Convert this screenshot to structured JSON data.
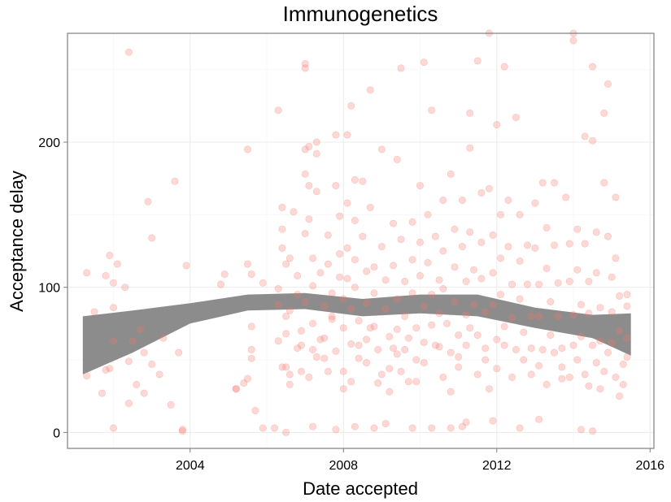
{
  "chart_data": {
    "type": "scatter",
    "title": "Immunogenetics",
    "xlabel": "Date accepted",
    "ylabel": "Acceptance delay",
    "xlim": [
      2000.8,
      2016.1
    ],
    "ylim": [
      -11,
      275
    ],
    "x_ticks": [
      2004,
      2008,
      2012,
      2016
    ],
    "y_ticks": [
      0,
      100,
      200
    ],
    "grid": true,
    "point_color": "#f8766d",
    "band_color": "#808080",
    "smooth_band": {
      "x": [
        2001.2,
        2002.5,
        2004.0,
        2005.5,
        2007.0,
        2008.5,
        2010.0,
        2011.5,
        2013.0,
        2014.5,
        2015.5
      ],
      "lower": [
        40,
        55,
        75,
        84,
        85,
        80,
        82,
        80,
        72,
        65,
        53
      ],
      "upper": [
        80,
        84,
        89,
        95,
        96,
        92,
        95,
        95,
        86,
        81,
        82
      ]
    },
    "points": [
      [
        2001.3,
        110
      ],
      [
        2001.3,
        39
      ],
      [
        2001.5,
        83
      ],
      [
        2001.7,
        27
      ],
      [
        2001.8,
        108
      ],
      [
        2001.8,
        43
      ],
      [
        2001.9,
        44
      ],
      [
        2001.9,
        122
      ],
      [
        2002.0,
        103
      ],
      [
        2002.0,
        86
      ],
      [
        2002.0,
        63
      ],
      [
        2002.0,
        3
      ],
      [
        2002.1,
        116
      ],
      [
        2002.3,
        100
      ],
      [
        2002.4,
        49
      ],
      [
        2002.4,
        20
      ],
      [
        2002.4,
        262
      ],
      [
        2002.5,
        63
      ],
      [
        2002.6,
        33
      ],
      [
        2002.7,
        71
      ],
      [
        2002.8,
        55
      ],
      [
        2002.8,
        27
      ],
      [
        2002.9,
        159
      ],
      [
        2003.0,
        47
      ],
      [
        2003.0,
        134
      ],
      [
        2003.2,
        40
      ],
      [
        2003.3,
        65
      ],
      [
        2003.5,
        19
      ],
      [
        2003.6,
        173
      ],
      [
        2003.7,
        55
      ],
      [
        2003.8,
        1
      ],
      [
        2003.8,
        2
      ],
      [
        2003.9,
        115
      ],
      [
        2004.8,
        102
      ],
      [
        2004.9,
        109
      ],
      [
        2005.2,
        30
      ],
      [
        2005.4,
        34
      ],
      [
        2005.5,
        37
      ],
      [
        2005.5,
        116
      ],
      [
        2005.5,
        195
      ],
      [
        2005.6,
        109
      ],
      [
        2005.6,
        73
      ],
      [
        2005.6,
        57
      ],
      [
        2005.6,
        51
      ],
      [
        2005.7,
        15
      ],
      [
        2005.9,
        103
      ],
      [
        2006.2,
        3
      ],
      [
        2006.3,
        99
      ],
      [
        2006.3,
        88
      ],
      [
        2006.3,
        63
      ],
      [
        2006.3,
        222
      ],
      [
        2006.4,
        155
      ],
      [
        2006.4,
        140
      ],
      [
        2006.4,
        127
      ],
      [
        2006.5,
        116
      ],
      [
        2006.5,
        80
      ],
      [
        2006.5,
        68
      ],
      [
        2006.5,
        45
      ],
      [
        2006.6,
        120
      ],
      [
        2006.6,
        84
      ],
      [
        2006.6,
        33
      ],
      [
        2006.7,
        152
      ],
      [
        2006.8,
        108
      ],
      [
        2006.8,
        95
      ],
      [
        2006.9,
        60
      ],
      [
        2006.9,
        42
      ],
      [
        2007.0,
        178
      ],
      [
        2007.0,
        137
      ],
      [
        2007.0,
        90
      ],
      [
        2007.0,
        254
      ],
      [
        2007.0,
        251
      ],
      [
        2007.0,
        195
      ],
      [
        2007.1,
        197
      ],
      [
        2007.1,
        170
      ],
      [
        2007.1,
        147
      ],
      [
        2007.2,
        120
      ],
      [
        2007.2,
        101
      ],
      [
        2007.2,
        75
      ],
      [
        2007.2,
        57
      ],
      [
        2007.3,
        200
      ],
      [
        2007.3,
        192
      ],
      [
        2007.3,
        166
      ],
      [
        2007.4,
        110
      ],
      [
        2007.5,
        87
      ],
      [
        2007.5,
        65
      ],
      [
        2007.5,
        51
      ],
      [
        2007.6,
        136
      ],
      [
        2007.6,
        116
      ],
      [
        2007.7,
        96
      ],
      [
        2007.7,
        80
      ],
      [
        2007.8,
        56
      ],
      [
        2007.8,
        205
      ],
      [
        2007.8,
        170
      ],
      [
        2007.9,
        149
      ],
      [
        2007.9,
        123
      ],
      [
        2007.9,
        107
      ],
      [
        2008.0,
        92
      ],
      [
        2008.0,
        72
      ],
      [
        2008.0,
        42
      ],
      [
        2008.0,
        277
      ],
      [
        2008.1,
        205
      ],
      [
        2008.1,
        158
      ],
      [
        2008.1,
        127
      ],
      [
        2008.1,
        106
      ],
      [
        2008.2,
        85
      ],
      [
        2008.2,
        61
      ],
      [
        2008.2,
        225
      ],
      [
        2008.3,
        174
      ],
      [
        2008.3,
        146
      ],
      [
        2008.3,
        119
      ],
      [
        2008.3,
        100
      ],
      [
        2008.4,
        77
      ],
      [
        2008.4,
        51
      ],
      [
        2008.5,
        173
      ],
      [
        2008.5,
        135
      ],
      [
        2008.6,
        111
      ],
      [
        2008.6,
        89
      ],
      [
        2008.6,
        64
      ],
      [
        2008.7,
        236
      ],
      [
        2008.7,
        155
      ],
      [
        2008.8,
        114
      ],
      [
        2008.8,
        96
      ],
      [
        2008.8,
        73
      ],
      [
        2008.9,
        57
      ],
      [
        2008.9,
        34
      ],
      [
        2009.0,
        195
      ],
      [
        2009.0,
        128
      ],
      [
        2009.1,
        105
      ],
      [
        2009.1,
        85
      ],
      [
        2009.2,
        66
      ],
      [
        2009.2,
        44
      ],
      [
        2009.3,
        144
      ],
      [
        2009.3,
        115
      ],
      [
        2009.4,
        92
      ],
      [
        2009.4,
        71
      ],
      [
        2009.4,
        54
      ],
      [
        2009.4,
        188
      ],
      [
        2009.5,
        251
      ],
      [
        2009.5,
        133
      ],
      [
        2009.6,
        104
      ],
      [
        2009.6,
        80
      ],
      [
        2009.6,
        57
      ],
      [
        2009.7,
        35
      ],
      [
        2009.8,
        145
      ],
      [
        2009.8,
        119
      ],
      [
        2009.8,
        96
      ],
      [
        2009.9,
        72
      ],
      [
        2009.9,
        50
      ],
      [
        2010.0,
        170
      ],
      [
        2010.0,
        131
      ],
      [
        2010.0,
        108
      ],
      [
        2010.1,
        87
      ],
      [
        2010.1,
        62
      ],
      [
        2010.1,
        255
      ],
      [
        2010.2,
        150
      ],
      [
        2010.2,
        117
      ],
      [
        2010.3,
        95
      ],
      [
        2010.3,
        74
      ],
      [
        2010.3,
        222
      ],
      [
        2010.4,
        135
      ],
      [
        2010.5,
        105
      ],
      [
        2010.5,
        82
      ],
      [
        2010.5,
        59
      ],
      [
        2010.6,
        160
      ],
      [
        2010.6,
        125
      ],
      [
        2010.6,
        99
      ],
      [
        2010.7,
        75
      ],
      [
        2010.8,
        55
      ],
      [
        2010.8,
        178
      ],
      [
        2010.9,
        140
      ],
      [
        2010.9,
        114
      ],
      [
        2010.9,
        90
      ],
      [
        2011.0,
        67
      ],
      [
        2011.0,
        45
      ],
      [
        2011.1,
        160
      ],
      [
        2011.1,
        128
      ],
      [
        2011.2,
        104
      ],
      [
        2011.2,
        81
      ],
      [
        2011.2,
        60
      ],
      [
        2011.3,
        220
      ],
      [
        2011.3,
        196
      ],
      [
        2011.3,
        138
      ],
      [
        2011.4,
        112
      ],
      [
        2011.4,
        88
      ],
      [
        2011.5,
        67
      ],
      [
        2011.5,
        256
      ],
      [
        2011.6,
        165
      ],
      [
        2011.6,
        131
      ],
      [
        2011.6,
        106
      ],
      [
        2011.7,
        83
      ],
      [
        2011.7,
        58
      ],
      [
        2011.8,
        275
      ],
      [
        2011.8,
        168
      ],
      [
        2011.9,
        136
      ],
      [
        2011.9,
        110
      ],
      [
        2011.9,
        88
      ],
      [
        2012.0,
        64
      ],
      [
        2012.0,
        212
      ],
      [
        2012.1,
        150
      ],
      [
        2012.1,
        120
      ],
      [
        2012.1,
        95
      ],
      [
        2012.2,
        73
      ],
      [
        2012.2,
        252
      ],
      [
        2012.3,
        160
      ],
      [
        2012.3,
        128
      ],
      [
        2012.4,
        102
      ],
      [
        2012.4,
        79
      ],
      [
        2012.5,
        57
      ],
      [
        2012.5,
        217
      ],
      [
        2012.6,
        150
      ],
      [
        2012.6,
        118
      ],
      [
        2012.6,
        92
      ],
      [
        2012.7,
        69
      ],
      [
        2012.8,
        129
      ],
      [
        2012.8,
        102
      ],
      [
        2012.9,
        80
      ],
      [
        2012.9,
        58
      ],
      [
        2013.0,
        158
      ],
      [
        2013.0,
        127
      ],
      [
        2013.1,
        102
      ],
      [
        2013.1,
        80
      ],
      [
        2013.2,
        57
      ],
      [
        2013.2,
        172
      ],
      [
        2013.3,
        141
      ],
      [
        2013.3,
        113
      ],
      [
        2013.4,
        90
      ],
      [
        2013.4,
        67
      ],
      [
        2013.5,
        172
      ],
      [
        2013.5,
        129
      ],
      [
        2013.6,
        103
      ],
      [
        2013.6,
        80
      ],
      [
        2013.7,
        58
      ],
      [
        2013.7,
        37
      ],
      [
        2013.8,
        162
      ],
      [
        2013.9,
        130
      ],
      [
        2013.9,
        104
      ],
      [
        2014.0,
        81
      ],
      [
        2014.0,
        60
      ],
      [
        2014.0,
        275
      ],
      [
        2014.0,
        270
      ],
      [
        2014.1,
        140
      ],
      [
        2014.1,
        112
      ],
      [
        2014.2,
        88
      ],
      [
        2014.2,
        66
      ],
      [
        2014.3,
        204
      ],
      [
        2014.3,
        130
      ],
      [
        2014.4,
        104
      ],
      [
        2014.4,
        82
      ],
      [
        2014.5,
        60
      ],
      [
        2014.5,
        252
      ],
      [
        2014.5,
        201
      ],
      [
        2014.6,
        138
      ],
      [
        2014.6,
        110
      ],
      [
        2014.7,
        86
      ],
      [
        2014.7,
        63
      ],
      [
        2014.8,
        220
      ],
      [
        2014.8,
        172
      ],
      [
        2014.9,
        240
      ],
      [
        2014.9,
        135
      ],
      [
        2015.0,
        107
      ],
      [
        2015.0,
        83
      ],
      [
        2015.0,
        62
      ],
      [
        2015.1,
        162
      ],
      [
        2015.1,
        120
      ],
      [
        2015.2,
        94
      ],
      [
        2015.2,
        70
      ],
      [
        2015.3,
        47
      ],
      [
        2015.3,
        33
      ],
      [
        2015.4,
        87
      ],
      [
        2015.4,
        65
      ],
      [
        2015.4,
        95
      ],
      [
        2005.2,
        30
      ],
      [
        2005.9,
        3
      ],
      [
        2006.5,
        0
      ],
      [
        2007.2,
        4
      ],
      [
        2007.8,
        2
      ],
      [
        2008.3,
        4
      ],
      [
        2008.8,
        3
      ],
      [
        2009.1,
        6
      ],
      [
        2009.8,
        3
      ],
      [
        2010.3,
        3
      ],
      [
        2010.8,
        3
      ],
      [
        2011.1,
        4
      ],
      [
        2011.2,
        7
      ],
      [
        2011.9,
        8
      ],
      [
        2012.6,
        3
      ],
      [
        2013.1,
        9
      ],
      [
        2014.2,
        2
      ],
      [
        2014.5,
        1
      ],
      [
        2006.4,
        45
      ],
      [
        2006.6,
        40
      ],
      [
        2006.8,
        58
      ],
      [
        2006.9,
        70
      ],
      [
        2007.1,
        38
      ],
      [
        2007.3,
        52
      ],
      [
        2007.4,
        64
      ],
      [
        2007.6,
        42
      ],
      [
        2007.7,
        78
      ],
      [
        2008.0,
        30
      ],
      [
        2008.2,
        35
      ],
      [
        2008.4,
        60
      ],
      [
        2008.6,
        48
      ],
      [
        2008.7,
        72
      ],
      [
        2009.0,
        40
      ],
      [
        2009.2,
        28
      ],
      [
        2009.3,
        58
      ],
      [
        2009.5,
        42
      ],
      [
        2009.7,
        65
      ],
      [
        2009.9,
        35
      ],
      [
        2010.1,
        48
      ],
      [
        2010.4,
        60
      ],
      [
        2010.6,
        38
      ],
      [
        2010.8,
        28
      ],
      [
        2011.0,
        52
      ],
      [
        2011.3,
        72
      ],
      [
        2011.5,
        40
      ],
      [
        2011.7,
        50
      ],
      [
        2011.8,
        30
      ],
      [
        2012.0,
        44
      ],
      [
        2012.2,
        60
      ],
      [
        2012.4,
        38
      ],
      [
        2012.7,
        50
      ],
      [
        2012.9,
        40
      ],
      [
        2013.1,
        46
      ],
      [
        2013.3,
        33
      ],
      [
        2013.5,
        55
      ],
      [
        2013.7,
        45
      ],
      [
        2013.9,
        38
      ],
      [
        2014.1,
        50
      ],
      [
        2014.3,
        40
      ],
      [
        2014.4,
        32
      ],
      [
        2014.6,
        48
      ],
      [
        2014.7,
        30
      ],
      [
        2014.8,
        42
      ],
      [
        2014.9,
        55
      ],
      [
        2015.1,
        38
      ],
      [
        2015.2,
        25
      ],
      [
        2015.4,
        52
      ]
    ]
  }
}
